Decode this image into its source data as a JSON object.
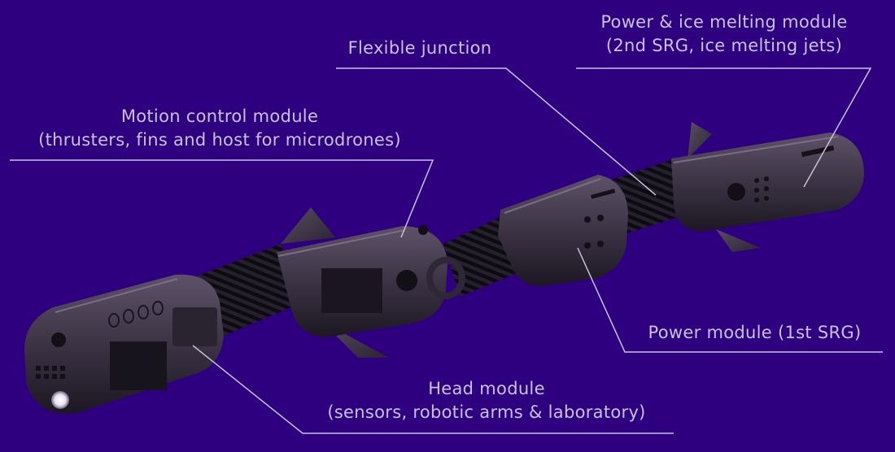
{
  "background_color": "#2e0080",
  "label_color": "#c8c2dc",
  "callouts": {
    "flexible_junction": {
      "line1": "Flexible junction"
    },
    "power_ice_module": {
      "line1": "Power & ice melting module",
      "line2": "(2nd SRG, ice melting jets)"
    },
    "motion_control_module": {
      "line1": "Motion control module",
      "line2": "(thrusters, fins and host for microdrones)"
    },
    "power_module": {
      "line1": "Power module (1st SRG)"
    },
    "head_module": {
      "line1": "Head module",
      "line2": "(sensors, robotic arms & laboratory)"
    }
  }
}
